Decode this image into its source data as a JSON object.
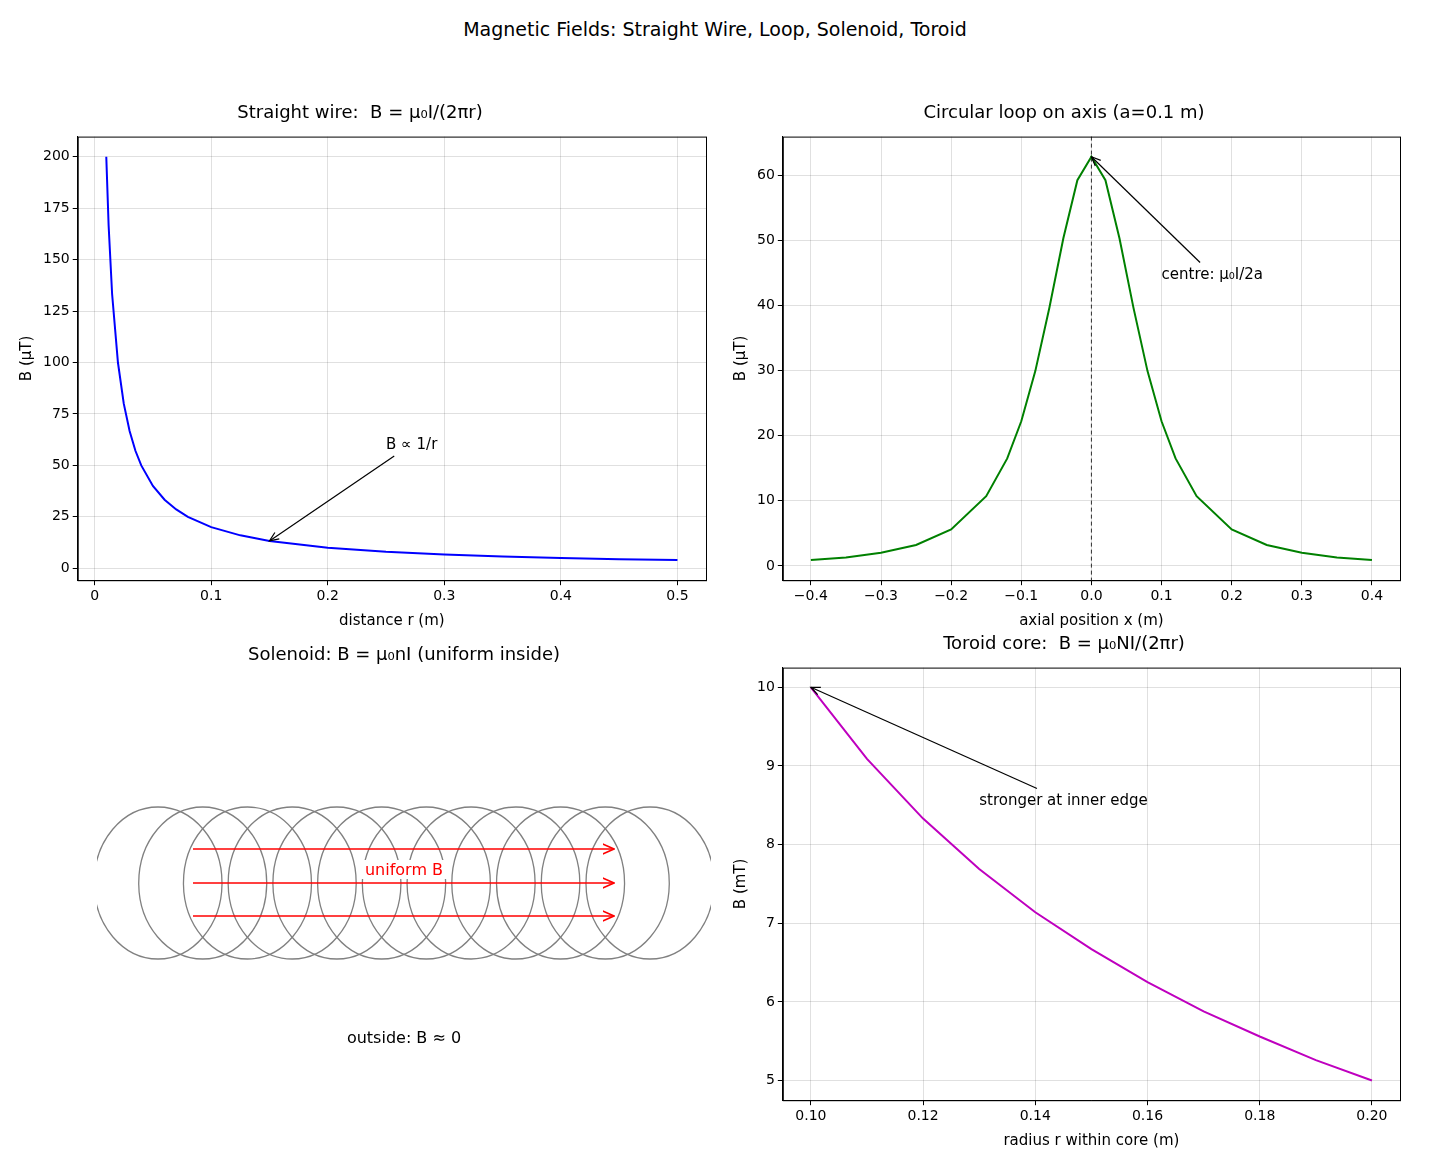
{
  "title": "Magnetic Fields: Straight Wire, Loop, Solenoid, Toroid",
  "chart_data": [
    {
      "type": "line",
      "title": "Straight wire:  B = μ₀I/(2πr)",
      "x_label": "distance r (m)",
      "y_label": "B (μT)",
      "x": [
        0.01,
        0.012,
        0.015,
        0.02,
        0.025,
        0.03,
        0.035,
        0.04,
        0.05,
        0.06,
        0.07,
        0.08,
        0.1,
        0.125,
        0.15,
        0.2,
        0.25,
        0.3,
        0.35,
        0.4,
        0.45,
        0.5
      ],
      "values": [
        200,
        166.7,
        133.3,
        100,
        80,
        66.7,
        57.1,
        50,
        40,
        33.3,
        28.6,
        25,
        20,
        16,
        13.3,
        10,
        8,
        6.7,
        5.7,
        5,
        4.4,
        4
      ],
      "color": "#0000ff",
      "xlim": [
        -0.0145,
        0.5245
      ],
      "xticks": [
        0,
        0.1,
        0.2,
        0.3,
        0.4,
        0.5
      ],
      "ylim": [
        -5.8,
        209.8
      ],
      "yticks": [
        0,
        25,
        50,
        75,
        100,
        125,
        150,
        175,
        200
      ],
      "grid": true,
      "annotations": [
        {
          "text": "B ∝ 1/r",
          "xy": [
            0.15,
            13.3
          ],
          "xytext": [
            0.25,
            58
          ]
        }
      ]
    },
    {
      "type": "line",
      "title": "Circular loop on axis (a=0.1 m)",
      "x_label": "axial position x (m)",
      "y_label": "B (μT)",
      "x": [
        -0.4,
        -0.35,
        -0.3,
        -0.25,
        -0.2,
        -0.15,
        -0.12,
        -0.1,
        -0.08,
        -0.06,
        -0.04,
        -0.02,
        0,
        0.02,
        0.04,
        0.06,
        0.08,
        0.1,
        0.12,
        0.15,
        0.2,
        0.25,
        0.3,
        0.35,
        0.4
      ],
      "values": [
        0.9,
        1.3,
        2.0,
        3.2,
        5.6,
        10.7,
        16.5,
        22.2,
        29.9,
        39.6,
        50.3,
        59.2,
        62.8,
        59.2,
        50.3,
        39.6,
        29.9,
        22.2,
        16.5,
        10.7,
        5.6,
        3.2,
        2.0,
        1.3,
        0.9
      ],
      "color": "#008000",
      "xlim": [
        -0.44,
        0.44
      ],
      "xticks": [
        {
          "value": -0.4,
          "label": "−0.4"
        },
        {
          "value": -0.3,
          "label": "−0.3"
        },
        {
          "value": -0.2,
          "label": "−0.2"
        },
        {
          "value": -0.1,
          "label": "−0.1"
        },
        {
          "value": 0,
          "label": "0.0"
        },
        0.1,
        0.2,
        0.3,
        0.4
      ],
      "ylim": [
        -2.2,
        65.9
      ],
      "yticks": [
        0,
        10,
        20,
        30,
        40,
        50,
        60
      ],
      "grid": true,
      "reference_lines": [
        {
          "x": 0,
          "line_style": "dashed"
        }
      ],
      "annotations": [
        {
          "text": "centre: μ₀I/2a",
          "xy": [
            0,
            62.8
          ],
          "xytext": [
            0.1,
            44
          ]
        }
      ]
    },
    {
      "type": "diagram",
      "title": "Solenoid:  B = μ₀nI (uniform inside)",
      "color": "#ff0000",
      "annotations": [
        {
          "text": "uniform B"
        },
        {
          "text": "outside: B ≈ 0"
        }
      ]
    },
    {
      "type": "line",
      "title": "Toroid core:  B = μ₀NI/(2πr)",
      "x_label": "radius r within core (m)",
      "y_label": "B (mT)",
      "x": [
        0.1,
        0.11,
        0.12,
        0.13,
        0.14,
        0.15,
        0.16,
        0.17,
        0.18,
        0.19,
        0.2
      ],
      "values": [
        10,
        9.09,
        8.33,
        7.69,
        7.14,
        6.67,
        6.25,
        5.88,
        5.56,
        5.26,
        5.0
      ],
      "color": "#bf00bf",
      "xlim": [
        0.095,
        0.205
      ],
      "xticks": [
        {
          "value": 0.1,
          "label": "0.10"
        },
        {
          "value": 0.12,
          "label": "0.12"
        },
        {
          "value": 0.14,
          "label": "0.14"
        },
        {
          "value": 0.16,
          "label": "0.16"
        },
        {
          "value": 0.18,
          "label": "0.18"
        },
        {
          "value": 0.2,
          "label": "0.20"
        }
      ],
      "ylim": [
        4.75,
        10.25
      ],
      "yticks": [
        5,
        6,
        7,
        8,
        9,
        10
      ],
      "grid": true,
      "annotations": [
        {
          "text": "stronger at inner edge",
          "xy": [
            0.1,
            10
          ],
          "xytext": [
            0.13,
            8.5
          ]
        }
      ]
    }
  ]
}
